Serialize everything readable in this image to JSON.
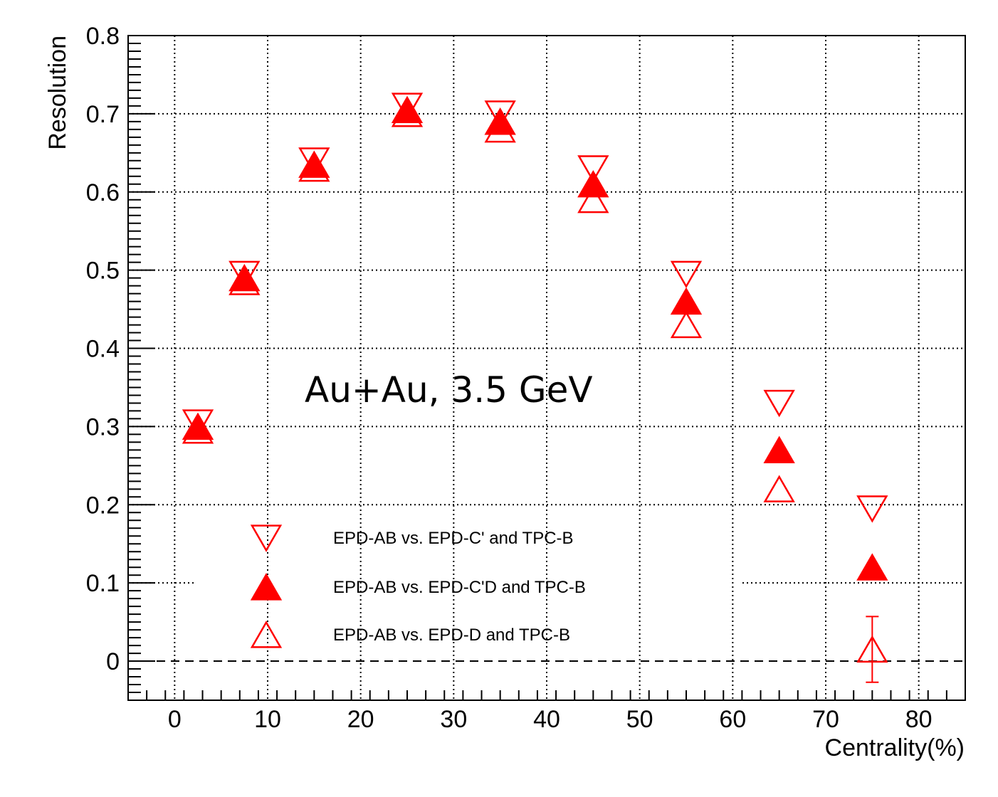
{
  "chart_data": {
    "type": "scatter",
    "title": "",
    "xlabel": "Centrality(%)",
    "ylabel": "Resolution",
    "xlim": [
      -5,
      85
    ],
    "ylim": [
      -0.05,
      0.8
    ],
    "x_ticks": [
      0,
      10,
      20,
      30,
      40,
      50,
      60,
      70,
      80
    ],
    "y_ticks": [
      0,
      0.1,
      0.2,
      0.3,
      0.4,
      0.5,
      0.6,
      0.7,
      0.8
    ],
    "x_tick_labels": [
      "0",
      "10",
      "20",
      "30",
      "40",
      "50",
      "60",
      "70",
      "80"
    ],
    "y_tick_labels": [
      "0",
      "0.1",
      "0.2",
      "0.3",
      "0.4",
      "0.5",
      "0.6",
      "0.7",
      "0.8"
    ],
    "grid": true,
    "reference_line_y": 0,
    "annotation": "Au+Au, 3.5 GeV",
    "legend_position": "bottom-left",
    "series": [
      {
        "name": "EPD-AB vs. EPD-C' and TPC-B",
        "marker": "open-triangle-down",
        "color": "#ff0000",
        "x": [
          2.5,
          7.5,
          15,
          25,
          35,
          45,
          55,
          65,
          75
        ],
        "y": [
          0.305,
          0.495,
          0.64,
          0.71,
          0.7,
          0.63,
          0.495,
          0.33,
          0.195
        ]
      },
      {
        "name": "EPD-AB vs. EPD-C'D and TPC-B",
        "marker": "filled-triangle-up",
        "color": "#ff0000",
        "x": [
          2.5,
          7.5,
          15,
          25,
          35,
          45,
          55,
          65,
          75
        ],
        "y": [
          0.3,
          0.49,
          0.635,
          0.705,
          0.69,
          0.61,
          0.46,
          0.27,
          0.12
        ]
      },
      {
        "name": "EPD-AB vs. EPD-D and TPC-B",
        "marker": "open-triangle-up",
        "color": "#ff0000",
        "x": [
          2.5,
          7.5,
          15,
          25,
          35,
          45,
          55,
          65,
          75
        ],
        "y": [
          0.295,
          0.485,
          0.63,
          0.7,
          0.68,
          0.59,
          0.43,
          0.22,
          0.015
        ],
        "errors": [
          0,
          0,
          0,
          0,
          0,
          0,
          0,
          0,
          0.042
        ]
      }
    ]
  }
}
